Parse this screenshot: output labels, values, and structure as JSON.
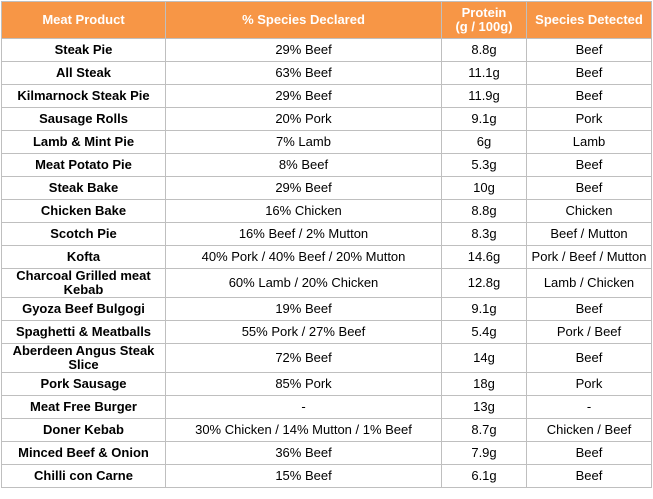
{
  "table": {
    "header": [
      "Meat Product",
      "% Species Declared",
      "Protein\n(g / 100g)",
      "Species Detected"
    ],
    "rows": [
      [
        "Steak Pie",
        "29% Beef",
        "8.8g",
        "Beef"
      ],
      [
        "All Steak",
        "63% Beef",
        "11.1g",
        "Beef"
      ],
      [
        "Kilmarnock Steak Pie",
        "29% Beef",
        "11.9g",
        "Beef"
      ],
      [
        "Sausage Rolls",
        "20% Pork",
        "9.1g",
        "Pork"
      ],
      [
        "Lamb & Mint Pie",
        "7% Lamb",
        "6g",
        "Lamb"
      ],
      [
        "Meat Potato Pie",
        "8% Beef",
        "5.3g",
        "Beef"
      ],
      [
        "Steak Bake",
        "29% Beef",
        "10g",
        "Beef"
      ],
      [
        "Chicken Bake",
        "16% Chicken",
        "8.8g",
        "Chicken"
      ],
      [
        "Scotch Pie",
        "16% Beef / 2% Mutton",
        "8.3g",
        "Beef / Mutton"
      ],
      [
        "Kofta",
        "40% Pork / 40% Beef / 20% Mutton",
        "14.6g",
        "Pork / Beef / Mutton"
      ],
      [
        "Charcoal Grilled meat Kebab",
        "60% Lamb / 20% Chicken",
        "12.8g",
        "Lamb / Chicken"
      ],
      [
        "Gyoza Beef Bulgogi",
        "19% Beef",
        "9.1g",
        "Beef"
      ],
      [
        "Spaghetti & Meatballs",
        "55% Pork / 27% Beef",
        "5.4g",
        "Pork / Beef"
      ],
      [
        "Aberdeen Angus Steak Slice",
        "72% Beef",
        "14g",
        "Beef"
      ],
      [
        "Pork Sausage",
        "85% Pork",
        "18g",
        "Pork"
      ],
      [
        "Meat Free Burger",
        "-",
        "13g",
        "-"
      ],
      [
        "Doner Kebab",
        "30% Chicken / 14% Mutton / 1% Beef",
        "8.7g",
        "Chicken / Beef"
      ],
      [
        "Minced Beef & Onion",
        "36% Beef",
        "7.9g",
        "Beef"
      ],
      [
        "Chilli con Carne",
        "15% Beef",
        "6.1g",
        "Beef"
      ]
    ]
  }
}
